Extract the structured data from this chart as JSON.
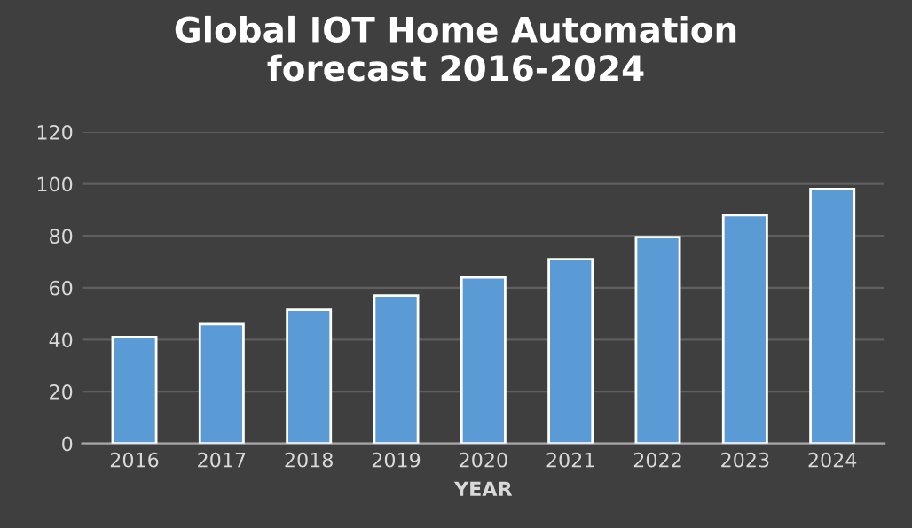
{
  "chart_data": {
    "type": "bar",
    "title": "Global IOT Home Automation\nforecast 2016-2024",
    "xlabel": "YEAR",
    "categories": [
      "2016",
      "2017",
      "2018",
      "2019",
      "2020",
      "2021",
      "2022",
      "2023",
      "2024"
    ],
    "values": [
      41,
      46,
      51.5,
      57,
      64,
      71,
      79.5,
      88,
      98
    ],
    "color": "#5b9bd5",
    "ylim": [
      0,
      120
    ],
    "yticks": [
      0,
      20,
      40,
      60,
      80,
      100,
      120
    ],
    "grid": "y"
  }
}
